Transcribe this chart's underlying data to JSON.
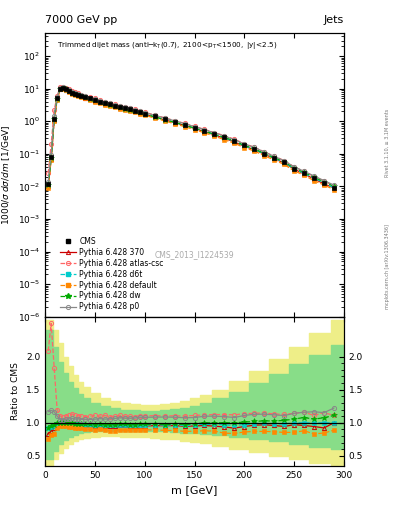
{
  "title_top": "7000 GeV pp",
  "title_right": "Jets",
  "main_title": "Trimmed dijet mass",
  "main_subtitle": "(anti-k_{T}(0.7), 2100<p_{T}<1500, |y|<2.5)",
  "xlabel": "m [GeV]",
  "ylabel_main": "1000/\\u03c3 d\\u03c3/dm [1/GeV]",
  "ylabel_ratio": "Ratio to CMS",
  "watermark": "CMS_2013_I1224539",
  "bg_color": "#ffffff",
  "cms_color": "#000000",
  "py370_color": "#cc0000",
  "pyatlas_color": "#ff6666",
  "pyd6t_color": "#00cccc",
  "pydefault_color": "#ff8800",
  "pydw_color": "#00aa00",
  "pyp0_color": "#888888",
  "ylim_main": [
    1e-06,
    500
  ],
  "ylim_ratio": [
    0.35,
    2.6
  ],
  "xlim": [
    0,
    300
  ],
  "m_values": [
    3,
    6,
    9,
    12,
    15,
    18,
    21,
    24,
    27,
    30,
    33,
    36,
    40,
    45,
    50,
    55,
    60,
    65,
    70,
    75,
    80,
    85,
    90,
    95,
    100,
    110,
    120,
    130,
    140,
    150,
    160,
    170,
    180,
    190,
    200,
    210,
    220,
    230,
    240,
    250,
    260,
    270,
    280,
    290
  ],
  "cms_values": [
    0.012,
    0.08,
    1.2,
    5.0,
    10.0,
    10.5,
    9.5,
    8.5,
    7.5,
    7.0,
    6.5,
    6.0,
    5.5,
    5.0,
    4.5,
    4.0,
    3.6,
    3.3,
    3.0,
    2.7,
    2.5,
    2.3,
    2.1,
    1.9,
    1.7,
    1.4,
    1.15,
    0.95,
    0.78,
    0.63,
    0.5,
    0.4,
    0.32,
    0.25,
    0.18,
    0.14,
    0.1,
    0.075,
    0.055,
    0.035,
    0.025,
    0.018,
    0.013,
    0.009
  ],
  "py370_values": [
    0.01,
    0.07,
    1.1,
    4.8,
    9.8,
    10.3,
    9.3,
    8.3,
    7.3,
    6.8,
    6.3,
    5.8,
    5.3,
    4.8,
    4.3,
    3.85,
    3.45,
    3.15,
    2.85,
    2.6,
    2.4,
    2.2,
    2.0,
    1.82,
    1.62,
    1.34,
    1.1,
    0.91,
    0.74,
    0.6,
    0.48,
    0.38,
    0.3,
    0.23,
    0.17,
    0.135,
    0.097,
    0.072,
    0.052,
    0.034,
    0.024,
    0.017,
    0.012,
    0.009
  ],
  "pyatlas_values": [
    0.025,
    0.2,
    2.2,
    6.0,
    11.0,
    11.5,
    10.5,
    9.5,
    8.5,
    7.8,
    7.2,
    6.6,
    6.0,
    5.5,
    5.0,
    4.4,
    4.0,
    3.6,
    3.3,
    3.0,
    2.75,
    2.52,
    2.3,
    2.1,
    1.88,
    1.55,
    1.27,
    1.05,
    0.86,
    0.7,
    0.56,
    0.45,
    0.36,
    0.28,
    0.205,
    0.16,
    0.115,
    0.085,
    0.062,
    0.04,
    0.029,
    0.02,
    0.015,
    0.01
  ],
  "pyd6t_values": [
    0.011,
    0.075,
    1.15,
    4.9,
    9.9,
    10.4,
    9.4,
    8.4,
    7.4,
    6.9,
    6.4,
    5.9,
    5.35,
    4.85,
    4.35,
    3.88,
    3.48,
    3.18,
    2.88,
    2.62,
    2.42,
    2.22,
    2.02,
    1.84,
    1.64,
    1.36,
    1.11,
    0.92,
    0.75,
    0.61,
    0.49,
    0.39,
    0.31,
    0.24,
    0.175,
    0.138,
    0.099,
    0.074,
    0.054,
    0.035,
    0.025,
    0.018,
    0.013,
    0.009
  ],
  "pydefault_values": [
    0.009,
    0.065,
    1.0,
    4.6,
    9.5,
    10.0,
    9.0,
    8.0,
    7.0,
    6.5,
    6.0,
    5.5,
    5.0,
    4.5,
    4.0,
    3.6,
    3.2,
    2.9,
    2.65,
    2.42,
    2.22,
    2.04,
    1.86,
    1.7,
    1.52,
    1.25,
    1.02,
    0.84,
    0.68,
    0.55,
    0.44,
    0.35,
    0.27,
    0.21,
    0.155,
    0.122,
    0.087,
    0.065,
    0.047,
    0.03,
    0.022,
    0.015,
    0.011,
    0.008
  ],
  "pydw_values": [
    0.011,
    0.076,
    1.16,
    4.95,
    9.95,
    10.45,
    9.45,
    8.45,
    7.45,
    6.92,
    6.42,
    5.92,
    5.38,
    4.88,
    4.38,
    3.9,
    3.5,
    3.2,
    2.9,
    2.64,
    2.44,
    2.24,
    2.04,
    1.86,
    1.66,
    1.37,
    1.12,
    0.93,
    0.76,
    0.62,
    0.5,
    0.4,
    0.32,
    0.25,
    0.182,
    0.143,
    0.103,
    0.077,
    0.057,
    0.037,
    0.027,
    0.019,
    0.014,
    0.01
  ],
  "pyp0_values": [
    0.014,
    0.095,
    1.4,
    5.5,
    10.5,
    11.0,
    10.0,
    9.0,
    8.0,
    7.4,
    6.9,
    6.3,
    5.8,
    5.25,
    4.75,
    4.25,
    3.8,
    3.5,
    3.2,
    2.9,
    2.68,
    2.46,
    2.25,
    2.06,
    1.84,
    1.52,
    1.25,
    1.03,
    0.84,
    0.68,
    0.55,
    0.44,
    0.35,
    0.27,
    0.2,
    0.158,
    0.113,
    0.084,
    0.061,
    0.04,
    0.029,
    0.021,
    0.015,
    0.011
  ],
  "yellow_band_x": [
    0,
    5,
    10,
    15,
    20,
    25,
    30,
    35,
    40,
    50,
    60,
    70,
    80,
    90,
    100,
    110,
    120,
    130,
    140,
    150,
    160,
    175,
    195,
    215,
    235,
    255,
    275,
    300
  ],
  "yellow_band_lo": [
    0.35,
    0.35,
    0.45,
    0.55,
    0.62,
    0.68,
    0.72,
    0.75,
    0.77,
    0.79,
    0.8,
    0.8,
    0.79,
    0.78,
    0.78,
    0.77,
    0.76,
    0.75,
    0.73,
    0.71,
    0.69,
    0.65,
    0.6,
    0.56,
    0.5,
    0.45,
    0.4,
    0.35
  ],
  "yellow_band_hi": [
    2.55,
    2.55,
    2.4,
    2.2,
    2.0,
    1.85,
    1.72,
    1.62,
    1.54,
    1.45,
    1.38,
    1.33,
    1.3,
    1.28,
    1.27,
    1.27,
    1.28,
    1.3,
    1.33,
    1.37,
    1.42,
    1.5,
    1.63,
    1.78,
    1.96,
    2.15,
    2.35,
    2.55
  ],
  "green_band_x": [
    0,
    5,
    10,
    15,
    20,
    25,
    30,
    35,
    40,
    50,
    60,
    70,
    80,
    90,
    100,
    110,
    120,
    130,
    140,
    150,
    160,
    175,
    195,
    215,
    235,
    255,
    275,
    300
  ],
  "green_band_lo": [
    0.45,
    0.45,
    0.58,
    0.68,
    0.74,
    0.79,
    0.82,
    0.84,
    0.86,
    0.87,
    0.88,
    0.88,
    0.88,
    0.87,
    0.87,
    0.87,
    0.87,
    0.86,
    0.85,
    0.84,
    0.83,
    0.81,
    0.78,
    0.75,
    0.72,
    0.68,
    0.64,
    0.6
  ],
  "green_band_hi": [
    2.4,
    2.4,
    2.15,
    1.92,
    1.75,
    1.62,
    1.52,
    1.44,
    1.38,
    1.3,
    1.25,
    1.22,
    1.2,
    1.19,
    1.18,
    1.18,
    1.19,
    1.21,
    1.23,
    1.26,
    1.3,
    1.37,
    1.47,
    1.6,
    1.74,
    1.88,
    2.02,
    2.18
  ]
}
